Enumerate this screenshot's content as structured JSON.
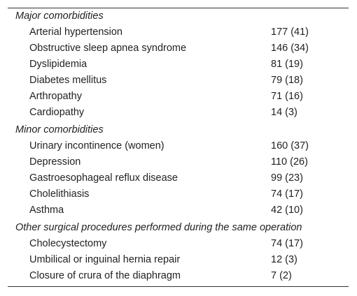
{
  "table": {
    "sections": [
      {
        "title": "Major comorbidities",
        "rows": [
          [
            "Arterial hypertension",
            "177 (41)"
          ],
          [
            "Obstructive sleep apnea syndrome",
            "146 (34)"
          ],
          [
            "Dyslipidemia",
            "81 (19)"
          ],
          [
            "Diabetes mellitus",
            "79 (18)"
          ],
          [
            "Arthropathy",
            "71 (16)"
          ],
          [
            "Cardiopathy",
            "14 (3)"
          ]
        ]
      },
      {
        "title": "Minor comorbidities",
        "rows": [
          [
            "Urinary incontinence (women)",
            "160 (37)"
          ],
          [
            "Depression",
            "110 (26)"
          ],
          [
            "Gastroesophageal reflux disease",
            "99 (23)"
          ],
          [
            "Cholelithiasis",
            "74 (17)"
          ],
          [
            "Asthma",
            "42 (10)"
          ]
        ]
      },
      {
        "title": "Other surgical procedures performed during the same operation",
        "rows": [
          [
            "Cholecystectomy",
            "74 (17)"
          ],
          [
            "Umbilical or inguinal hernia repair",
            "12 (3)"
          ],
          [
            "Closure of crura of the diaphragm",
            "7 (2)"
          ]
        ]
      }
    ]
  }
}
